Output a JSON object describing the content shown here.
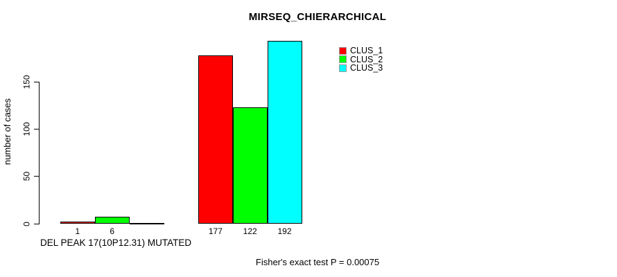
{
  "chart_data": {
    "type": "bar",
    "title": "MIRSEQ_CHIERARCHICAL",
    "ylabel": "number of cases",
    "xlabel": "DEL PEAK 17(10P12.31) MUTATED",
    "footnote": "Fisher's exact test P = 0.00075",
    "ylim": [
      0,
      192
    ],
    "yticks": [
      0,
      50,
      100,
      150
    ],
    "grid": false,
    "legend_position": "top-right",
    "background_color": "#ffffff",
    "axis_color": "#000000",
    "series": [
      {
        "name": "CLUS_1",
        "color": "#ff0000"
      },
      {
        "name": "CLUS_2",
        "color": "#00ff00"
      },
      {
        "name": "CLUS_3",
        "color": "#00ffff"
      }
    ],
    "groups": [
      {
        "label": "DEL PEAK 17(10P12.31) MUTATED",
        "values": [
          1,
          6,
          0
        ],
        "bar_labels": [
          "1",
          "6",
          ""
        ]
      },
      {
        "label": "",
        "values": [
          177,
          122,
          192
        ],
        "bar_labels": [
          "177",
          "122",
          "192"
        ]
      }
    ]
  }
}
